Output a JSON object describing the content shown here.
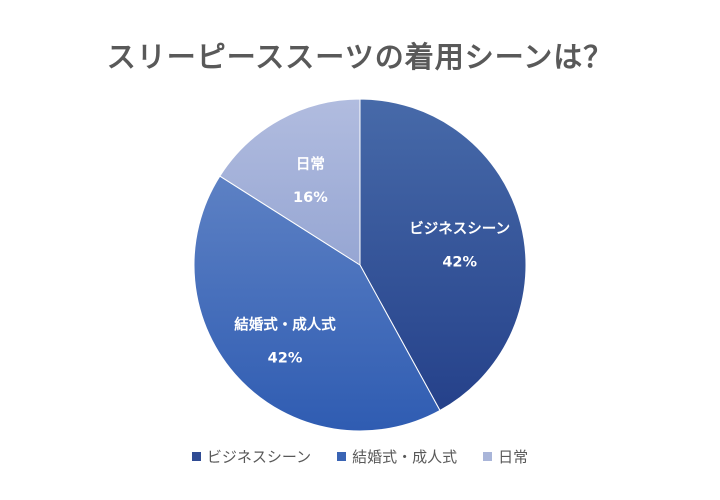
{
  "chart_data": {
    "type": "pie",
    "title": "スリーピーススーツの着用シーンは？",
    "slices": [
      {
        "label": "ビジネスシーン",
        "value": 42,
        "value_label": "42%",
        "color": "#2f4b93"
      },
      {
        "label": "結婚式・成人式",
        "value": 42,
        "value_label": "42%",
        "color": "#3a64b4"
      },
      {
        "label": "日常",
        "value": 16,
        "value_label": "16%",
        "color": "#a9b5d9"
      }
    ],
    "legend_position": "bottom"
  }
}
